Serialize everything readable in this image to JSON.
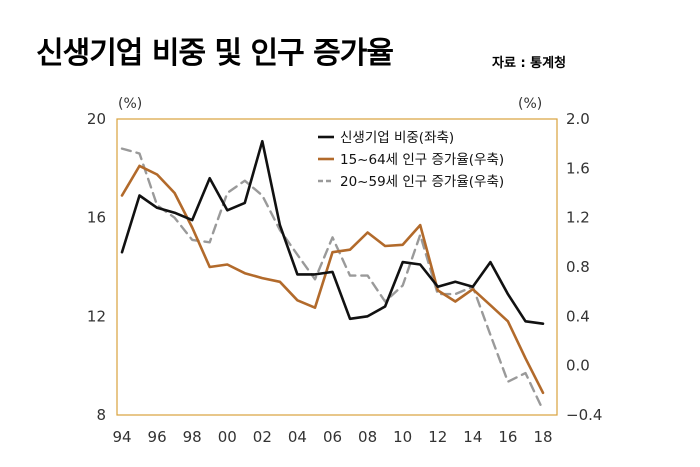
{
  "header": {
    "title": "신생기업 비중 및 인구 증가율",
    "source": "자료 : 통계청"
  },
  "chart_data": {
    "type": "line",
    "x": [
      94,
      95,
      96,
      97,
      98,
      99,
      100,
      101,
      102,
      103,
      104,
      105,
      106,
      107,
      108,
      109,
      110,
      111,
      112,
      113,
      114,
      115,
      116,
      117,
      118
    ],
    "x_tick_labels": [
      "94",
      "96",
      "98",
      "00",
      "02",
      "04",
      "06",
      "08",
      "10",
      "12",
      "14",
      "16",
      "18"
    ],
    "x_tick_values": [
      94,
      96,
      98,
      100,
      102,
      104,
      106,
      108,
      110,
      112,
      114,
      116,
      118
    ],
    "left_axis": {
      "unit": "(%)",
      "ylim": [
        8,
        20
      ],
      "ticks": [
        "8",
        "12",
        "16",
        "20"
      ],
      "tick_values": [
        8,
        12,
        16,
        20
      ]
    },
    "right_axis": {
      "unit": "(%)",
      "ylim": [
        -0.4,
        2.0
      ],
      "ticks": [
        "−0.4",
        "0.0",
        "0.4",
        "0.8",
        "1.2",
        "1.6",
        "2.0"
      ],
      "tick_values": [
        -0.4,
        0.0,
        0.4,
        0.8,
        1.2,
        1.6,
        2.0
      ]
    },
    "grid": false,
    "legend_position": "top-right",
    "series": [
      {
        "name": "신생기업 비중(좌축)",
        "axis": "left",
        "color": "#111111",
        "style": "solid",
        "values": [
          14.6,
          16.9,
          16.4,
          16.2,
          15.9,
          17.6,
          16.3,
          16.6,
          19.1,
          15.7,
          13.7,
          13.7,
          13.8,
          11.9,
          12.0,
          12.4,
          14.2,
          14.1,
          13.2,
          13.4,
          13.2,
          14.2,
          12.9,
          11.8,
          11.7
        ]
      },
      {
        "name": "15~64세 인구 증가율(우축)",
        "axis": "right",
        "color": "#b26a2b",
        "style": "solid",
        "values": [
          1.38,
          1.62,
          1.55,
          1.4,
          1.12,
          0.8,
          0.82,
          0.75,
          0.71,
          0.68,
          0.53,
          0.47,
          0.92,
          0.94,
          1.08,
          0.97,
          0.98,
          1.14,
          0.61,
          0.52,
          0.62,
          0.49,
          0.36,
          0.06,
          -0.22
        ]
      },
      {
        "name": "20~59세 인구 증가율(우축)",
        "axis": "right",
        "color": "#9a9a9a",
        "style": "dashed",
        "values": [
          1.76,
          1.72,
          1.3,
          1.2,
          1.02,
          1.0,
          1.4,
          1.5,
          1.38,
          1.1,
          0.9,
          0.7,
          1.04,
          0.73,
          0.73,
          0.52,
          0.65,
          1.06,
          0.58,
          0.58,
          0.64,
          0.25,
          -0.13,
          -0.06,
          -0.36
        ]
      }
    ]
  }
}
